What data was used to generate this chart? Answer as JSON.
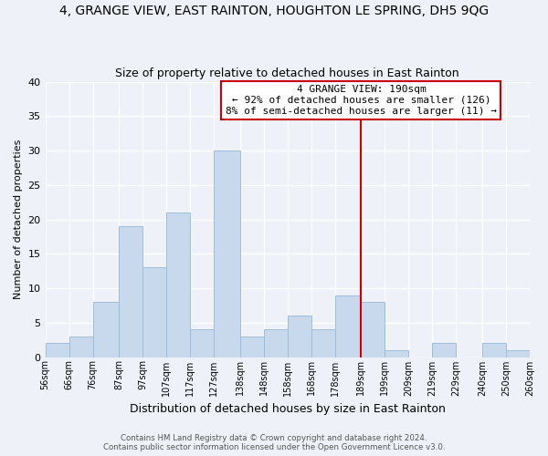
{
  "title": "4, GRANGE VIEW, EAST RAINTON, HOUGHTON LE SPRING, DH5 9QG",
  "subtitle": "Size of property relative to detached houses in East Rainton",
  "xlabel": "Distribution of detached houses by size in East Rainton",
  "ylabel": "Number of detached properties",
  "bar_color": "#c8d9ee",
  "bar_edge_color": "#a0bcd8",
  "background_color": "#eef2f8",
  "grid_color": "#ffffff",
  "bin_edges": [
    56,
    66,
    76,
    87,
    97,
    107,
    117,
    127,
    138,
    148,
    158,
    168,
    178,
    189,
    199,
    209,
    219,
    229,
    240,
    250,
    260
  ],
  "bin_labels": [
    "56sqm",
    "66sqm",
    "76sqm",
    "87sqm",
    "97sqm",
    "107sqm",
    "117sqm",
    "127sqm",
    "138sqm",
    "148sqm",
    "158sqm",
    "168sqm",
    "178sqm",
    "189sqm",
    "199sqm",
    "209sqm",
    "219sqm",
    "229sqm",
    "240sqm",
    "250sqm",
    "260sqm"
  ],
  "counts": [
    2,
    3,
    8,
    19,
    13,
    21,
    4,
    30,
    3,
    4,
    6,
    4,
    9,
    8,
    1,
    0,
    2,
    0,
    2,
    1
  ],
  "vline_x": 189,
  "vline_color": "#cc0000",
  "annotation_title": "4 GRANGE VIEW: 190sqm",
  "annotation_line1": "← 92% of detached houses are smaller (126)",
  "annotation_line2": "8% of semi-detached houses are larger (11) →",
  "annotation_box_color": "#ffffff",
  "annotation_box_edge": "#cc0000",
  "ylim": [
    0,
    40
  ],
  "yticks": [
    0,
    5,
    10,
    15,
    20,
    25,
    30,
    35,
    40
  ],
  "footer1": "Contains HM Land Registry data © Crown copyright and database right 2024.",
  "footer2": "Contains public sector information licensed under the Open Government Licence v3.0."
}
